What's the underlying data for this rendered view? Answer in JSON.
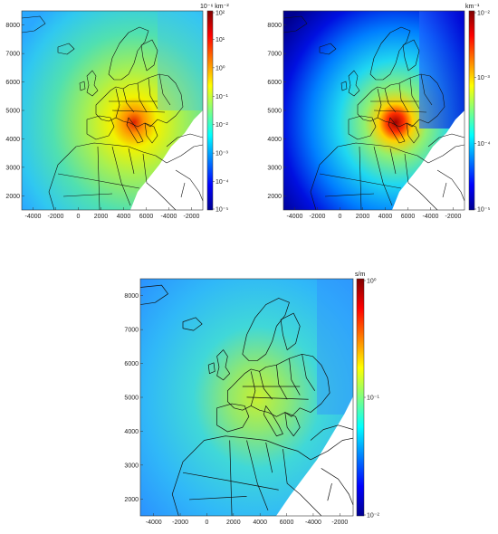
{
  "panels": [
    {
      "id": "panel-a",
      "unit_label": "10⁻⁶ km⁻²",
      "colorbar_ticks": [
        "10²",
        "10¹",
        "10⁰",
        "10⁻¹",
        "10⁻²",
        "10⁻³",
        "10⁻⁴",
        "10⁻⁵"
      ],
      "y_ticks": [
        "8000",
        "7000",
        "6000",
        "5000",
        "4000",
        "3000",
        "2000"
      ],
      "x_ticks": [
        "-4000",
        "-2000",
        "0",
        "2000",
        "4000",
        "6000",
        "-4000",
        "-2000"
      ]
    },
    {
      "id": "panel-b",
      "unit_label": "km⁻¹",
      "colorbar_ticks": [
        "10⁻²",
        "10⁻³",
        "10⁻⁴",
        "10⁻⁵"
      ],
      "y_ticks": [
        "8000",
        "7000",
        "6000",
        "5000",
        "4000",
        "3000",
        "2000"
      ],
      "x_ticks": [
        "-4000",
        "-2000",
        "0",
        "2000",
        "4000",
        "6000",
        "-4000",
        "-2000"
      ]
    },
    {
      "id": "panel-c",
      "unit_label": "s/m",
      "colorbar_ticks": [
        "10⁰",
        "10⁻¹",
        "10⁻²"
      ],
      "y_ticks": [
        "8000",
        "7000",
        "6000",
        "5000",
        "4000",
        "3000",
        "2000"
      ],
      "x_ticks": [
        "-4000",
        "-2000",
        "0",
        "2000",
        "4000",
        "6000",
        "-4000",
        "-2000"
      ]
    }
  ],
  "colormap": [
    "#00008f",
    "#0000ff",
    "#0080ff",
    "#00ffff",
    "#80ff80",
    "#ffff00",
    "#ff8000",
    "#ff0000",
    "#800000"
  ]
}
